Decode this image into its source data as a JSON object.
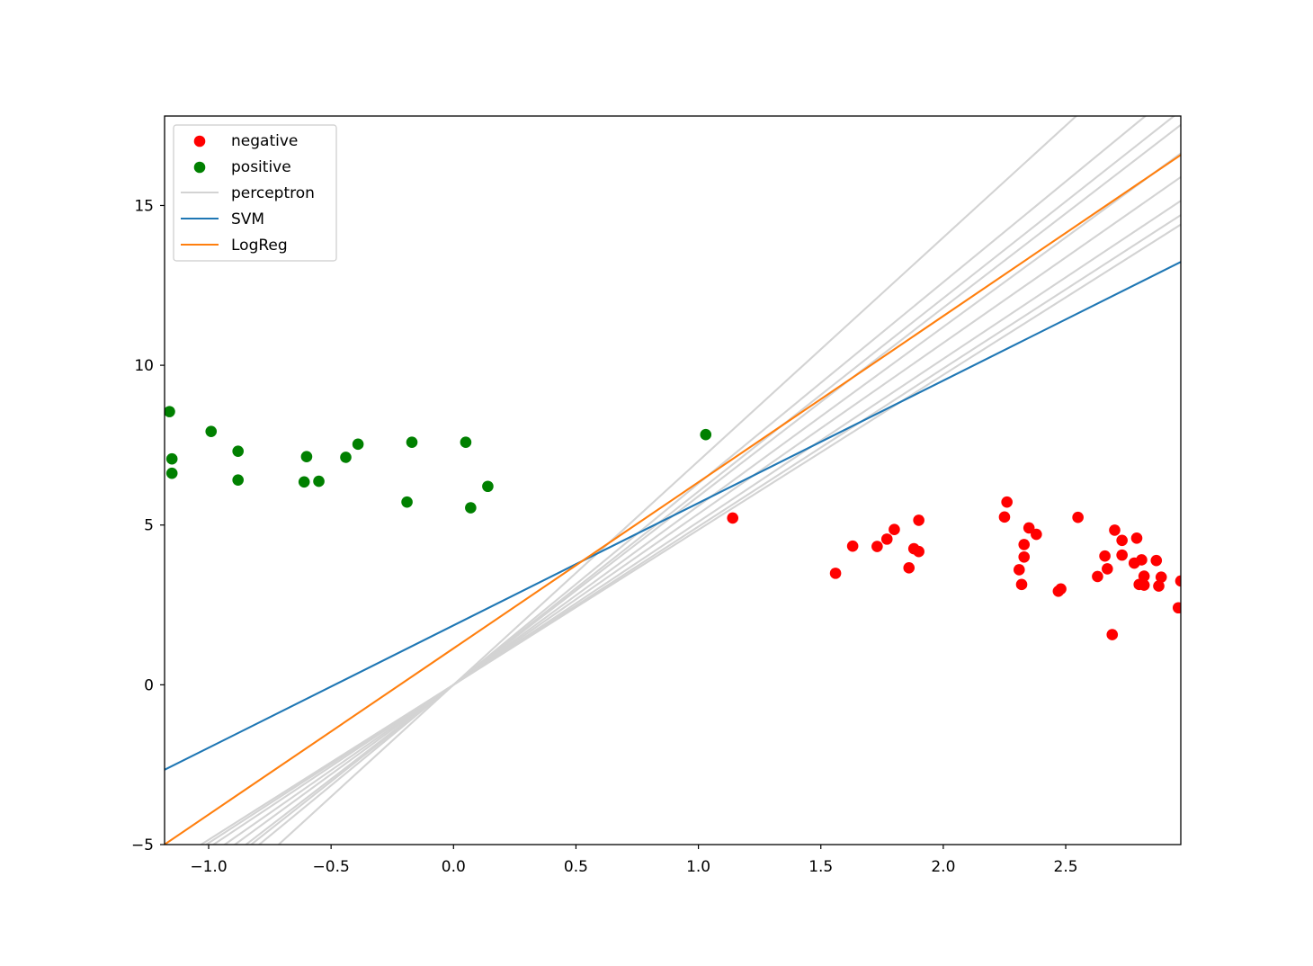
{
  "chart_data": {
    "type": "scatter",
    "title": "",
    "xlabel": "",
    "ylabel": "",
    "xlim": [
      -1.18,
      2.97
    ],
    "ylim": [
      -5,
      17.8
    ],
    "xticks": [
      -1.0,
      -0.5,
      0.0,
      0.5,
      1.0,
      1.5,
      2.0,
      2.5
    ],
    "xtick_labels": [
      "−1.0",
      "−0.5",
      "0.0",
      "0.5",
      "1.0",
      "1.5",
      "2.0",
      "2.5"
    ],
    "yticks": [
      -5,
      0,
      5,
      10,
      15
    ],
    "ytick_labels": [
      "−5",
      "0",
      "5",
      "10",
      "15"
    ],
    "grid": false,
    "legend_position": "upper-left",
    "scatter_series": [
      {
        "name": "negative",
        "color": "#ff0000",
        "points": [
          [
            1.14,
            5.22
          ],
          [
            1.56,
            3.49
          ],
          [
            1.63,
            4.34
          ],
          [
            1.73,
            4.33
          ],
          [
            1.77,
            4.56
          ],
          [
            1.8,
            4.86
          ],
          [
            1.86,
            3.66
          ],
          [
            1.88,
            4.26
          ],
          [
            1.9,
            5.15
          ],
          [
            1.9,
            4.17
          ],
          [
            2.25,
            5.25
          ],
          [
            2.26,
            5.72
          ],
          [
            2.31,
            3.6
          ],
          [
            2.32,
            3.14
          ],
          [
            2.33,
            4.0
          ],
          [
            2.33,
            4.39
          ],
          [
            2.35,
            4.91
          ],
          [
            2.38,
            4.71
          ],
          [
            2.47,
            2.93
          ],
          [
            2.48,
            3.0
          ],
          [
            2.55,
            5.24
          ],
          [
            2.63,
            3.39
          ],
          [
            2.66,
            4.03
          ],
          [
            2.67,
            3.63
          ],
          [
            2.69,
            1.57
          ],
          [
            2.7,
            4.84
          ],
          [
            2.73,
            4.52
          ],
          [
            2.73,
            4.06
          ],
          [
            2.78,
            3.81
          ],
          [
            2.79,
            4.59
          ],
          [
            2.8,
            3.14
          ],
          [
            2.81,
            3.91
          ],
          [
            2.82,
            3.4
          ],
          [
            2.82,
            3.12
          ],
          [
            2.87,
            3.89
          ],
          [
            2.88,
            3.09
          ],
          [
            2.89,
            3.37
          ],
          [
            2.96,
            2.41
          ],
          [
            2.97,
            3.25
          ]
        ]
      },
      {
        "name": "positive",
        "color": "#008000",
        "points": [
          [
            -1.16,
            8.55
          ],
          [
            -1.15,
            6.62
          ],
          [
            -1.15,
            7.07
          ],
          [
            -0.99,
            7.93
          ],
          [
            -0.88,
            6.41
          ],
          [
            -0.88,
            7.31
          ],
          [
            -0.61,
            6.35
          ],
          [
            -0.6,
            7.14
          ],
          [
            -0.55,
            6.37
          ],
          [
            -0.44,
            7.12
          ],
          [
            -0.39,
            7.53
          ],
          [
            -0.19,
            5.72
          ],
          [
            -0.17,
            7.59
          ],
          [
            0.05,
            7.59
          ],
          [
            0.07,
            5.54
          ],
          [
            0.14,
            6.21
          ],
          [
            1.03,
            7.83
          ]
        ]
      }
    ],
    "line_series": [
      {
        "name": "perceptron",
        "color": "#d3d3d3",
        "lines": [
          {
            "slope": 7.0,
            "intercept": 0.0
          },
          {
            "slope": 6.3,
            "intercept": 0.0
          },
          {
            "slope": 6.05,
            "intercept": 0.0
          },
          {
            "slope": 5.9,
            "intercept": 0.0
          },
          {
            "slope": 5.6,
            "intercept": 0.0
          },
          {
            "slope": 5.35,
            "intercept": 0.0
          },
          {
            "slope": 5.1,
            "intercept": 0.0
          },
          {
            "slope": 4.95,
            "intercept": 0.0
          },
          {
            "slope": 4.85,
            "intercept": 0.0
          }
        ]
      },
      {
        "name": "SVM",
        "color": "#1f77b4",
        "lines": [
          {
            "slope": 3.83,
            "intercept": 1.86
          }
        ]
      },
      {
        "name": "LogReg",
        "color": "#ff7f0e",
        "lines": [
          {
            "slope": 5.2,
            "intercept": 1.14
          }
        ]
      }
    ],
    "legend": [
      {
        "label": "negative",
        "kind": "marker",
        "color": "#ff0000"
      },
      {
        "label": "positive",
        "kind": "marker",
        "color": "#008000"
      },
      {
        "label": "perceptron",
        "kind": "line",
        "color": "#d3d3d3"
      },
      {
        "label": "SVM",
        "kind": "line",
        "color": "#1f77b4"
      },
      {
        "label": "LogReg",
        "kind": "line",
        "color": "#ff7f0e"
      }
    ]
  }
}
